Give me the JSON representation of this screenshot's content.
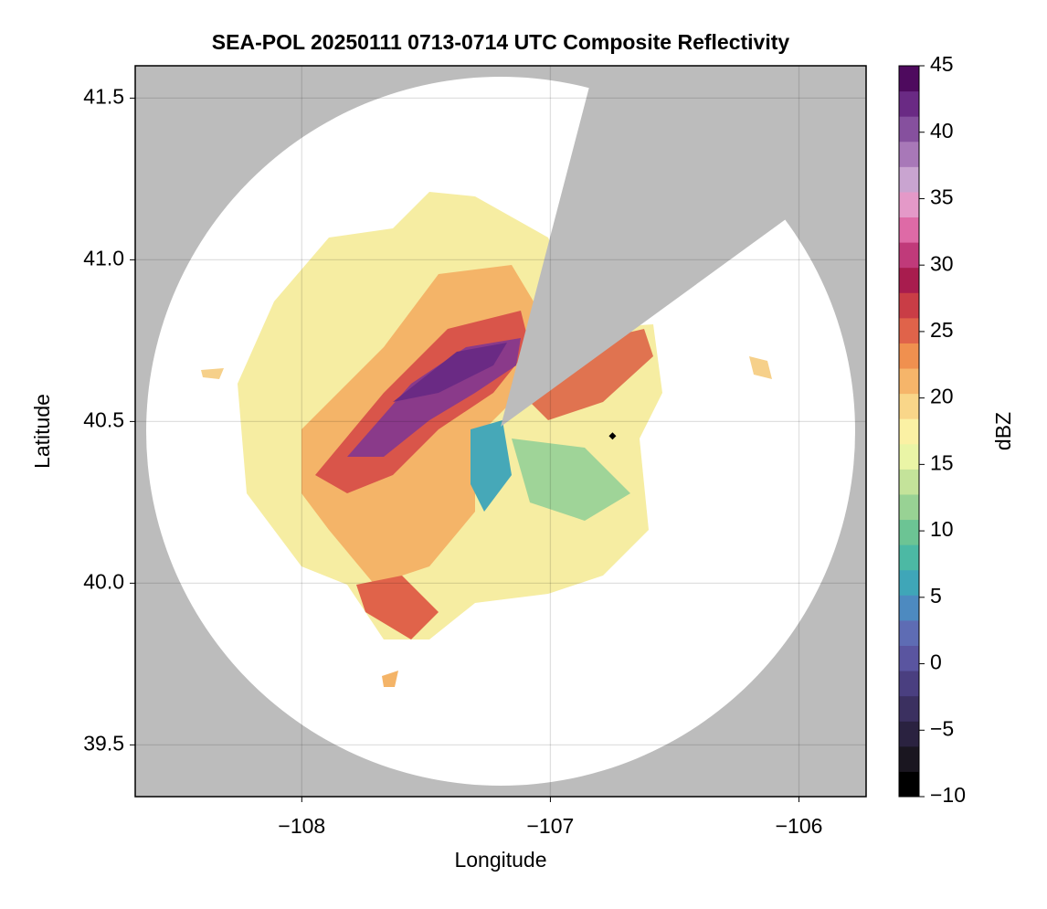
{
  "chart_data": {
    "type": "radar-map",
    "title": "SEA-POL 20250111 0713-0714 UTC Composite Reflectivity",
    "xlabel": "Longitude",
    "ylabel": "Latitude",
    "xlim": [
      -108.67,
      -105.73
    ],
    "ylim": [
      39.34,
      41.6
    ],
    "xticks": [
      {
        "value": -108,
        "label": "−108"
      },
      {
        "value": -107,
        "label": "−107"
      },
      {
        "value": -106,
        "label": "−106"
      }
    ],
    "yticks": [
      39.5,
      40.0,
      40.5,
      41.0,
      41.5
    ],
    "grid": true,
    "marker": {
      "x": -106.75,
      "y": 40.455,
      "color": "#000000"
    },
    "colorbar": {
      "label": "dBZ",
      "clim": [
        -10,
        45
      ],
      "cticks": [
        {
          "value": -10,
          "label": "−10"
        },
        {
          "value": -5,
          "label": "−5"
        },
        0,
        5,
        10,
        15,
        20,
        25,
        30,
        35,
        40,
        45
      ],
      "colormap": [
        "#000000",
        "#1a1620",
        "#2a2240",
        "#3b3060",
        "#4a3f80",
        "#5a55a0",
        "#5e6cb4",
        "#4d8ac0",
        "#3fa6b8",
        "#4cb9a4",
        "#6cc494",
        "#98d294",
        "#c4e39a",
        "#eaf5a6",
        "#fbf1a4",
        "#f9d689",
        "#f6b56a",
        "#f0904f",
        "#e0634a",
        "#c93d46",
        "#a81c4e",
        "#c03a7a",
        "#de6aa6",
        "#e499c8",
        "#c9a4d0",
        "#a878b8",
        "#86509e",
        "#6a2a84",
        "#4e0a5e"
      ]
    }
  }
}
